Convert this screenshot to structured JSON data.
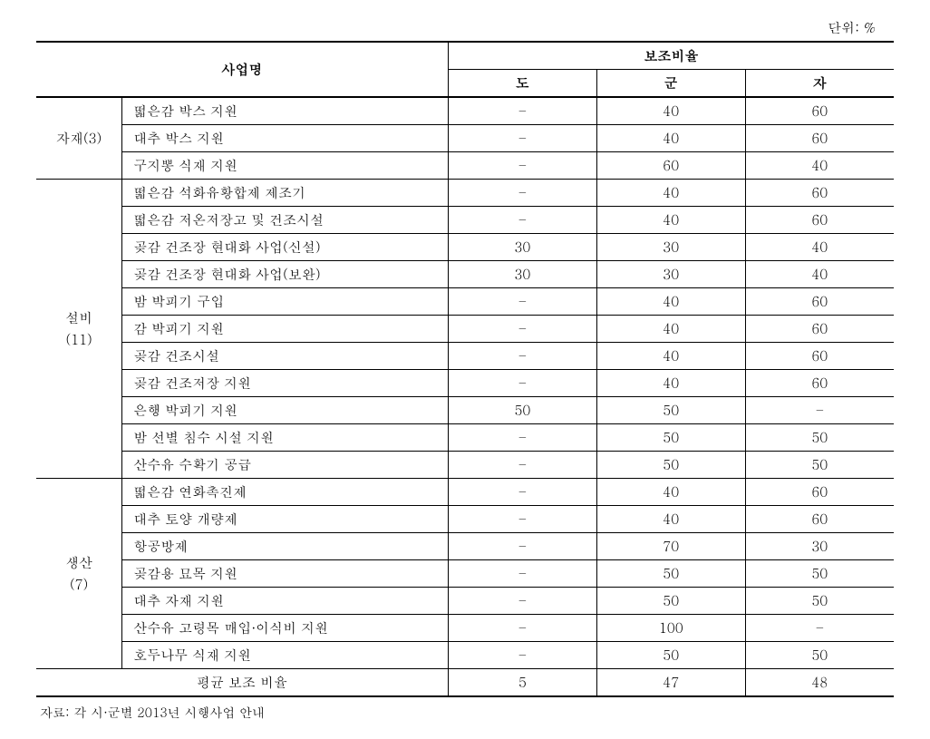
{
  "unit": "단위: %",
  "headers": {
    "main_left": "사업명",
    "main_right": "보조비율",
    "sub1": "도",
    "sub2": "군",
    "sub3": "자"
  },
  "groups": [
    {
      "category": "자재(3)",
      "rows": [
        {
          "name": "떫은감 박스 지원",
          "do": "–",
          "gun": "40",
          "ja": "60"
        },
        {
          "name": "대추 박스 지원",
          "do": "–",
          "gun": "40",
          "ja": "60"
        },
        {
          "name": "구지뽕 식재 지원",
          "do": "–",
          "gun": "60",
          "ja": "40"
        }
      ]
    },
    {
      "category": "설비<br>(11)",
      "rows": [
        {
          "name": "떫은감 석화유황합제 제조기",
          "do": "–",
          "gun": "40",
          "ja": "60"
        },
        {
          "name": "떫은감 저온저장고 및 건조시설",
          "do": "–",
          "gun": "40",
          "ja": "60"
        },
        {
          "name": "곶감 건조장 현대화 사업(신설)",
          "do": "30",
          "gun": "30",
          "ja": "40"
        },
        {
          "name": "곶감 건조장 현대화 사업(보완)",
          "do": "30",
          "gun": "30",
          "ja": "40"
        },
        {
          "name": "밤 박피기 구입",
          "do": "–",
          "gun": "40",
          "ja": "60"
        },
        {
          "name": "감 박피기 지원",
          "do": "–",
          "gun": "40",
          "ja": "60"
        },
        {
          "name": "곶감 건조시설",
          "do": "–",
          "gun": "40",
          "ja": "60"
        },
        {
          "name": "곶감 건조저장 지원",
          "do": "–",
          "gun": "40",
          "ja": "60"
        },
        {
          "name": "은행 박피기 지원",
          "do": "50",
          "gun": "50",
          "ja": "–"
        },
        {
          "name": "밤 선별 침수 시설 지원",
          "do": "–",
          "gun": "50",
          "ja": "50"
        },
        {
          "name": "산수유 수확기 공급",
          "do": "–",
          "gun": "50",
          "ja": "50"
        }
      ]
    },
    {
      "category": "생산<br>(7)",
      "rows": [
        {
          "name": "떫은감 연화촉진제",
          "do": "–",
          "gun": "40",
          "ja": "60"
        },
        {
          "name": "대추 토양 개량제",
          "do": "–",
          "gun": "40",
          "ja": "60"
        },
        {
          "name": "항공방제",
          "do": "–",
          "gun": "70",
          "ja": "30"
        },
        {
          "name": "곶감용 묘목 지원",
          "do": "–",
          "gun": "50",
          "ja": "50"
        },
        {
          "name": "대추 자재 지원",
          "do": "–",
          "gun": "50",
          "ja": "50"
        },
        {
          "name": "산수유 고령목 매입·이식비 지원",
          "do": "–",
          "gun": "100",
          "ja": "–"
        },
        {
          "name": "호두나무 식재 지원",
          "do": "–",
          "gun": "50",
          "ja": "50"
        }
      ]
    }
  ],
  "average": {
    "label": "평균 보조 비율",
    "do": "5",
    "gun": "47",
    "ja": "48"
  },
  "source": "자료: 각 시·군별 2013년 시행사업 안내"
}
